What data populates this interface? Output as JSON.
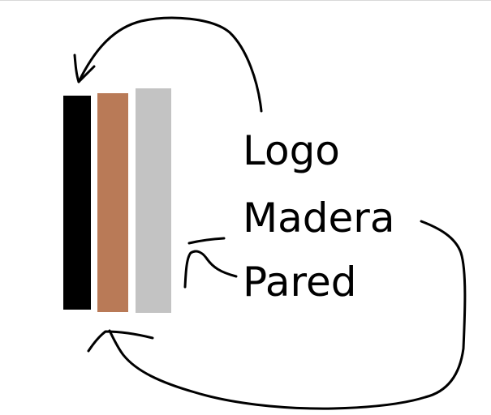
{
  "labels": {
    "logo": "Logo",
    "madera": "Madera",
    "pared": "Pared"
  },
  "colors": {
    "logo": "#000000",
    "madera": "#b97a57",
    "pared": "#c3c3c3",
    "stroke": "#000000"
  }
}
